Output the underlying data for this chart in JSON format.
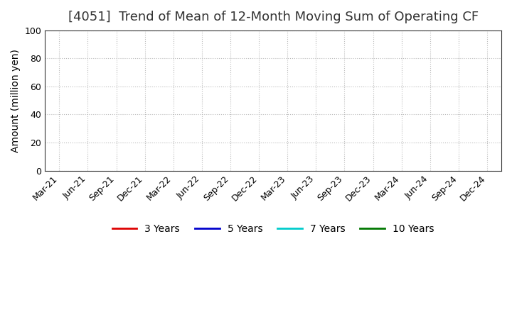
{
  "title": "[4051]  Trend of Mean of 12-Month Moving Sum of Operating CF",
  "ylabel": "Amount (million yen)",
  "ylim": [
    0,
    100
  ],
  "yticks": [
    0,
    20,
    40,
    60,
    80,
    100
  ],
  "background_color": "#ffffff",
  "plot_bg_color": "#ffffff",
  "grid_color": "#bbbbbb",
  "title_fontsize": 13,
  "title_color": "#333333",
  "axis_label_fontsize": 10,
  "tick_fontsize": 9,
  "legend_entries": [
    {
      "label": "3 Years",
      "color": "#dd0000",
      "lw": 2
    },
    {
      "label": "5 Years",
      "color": "#0000cc",
      "lw": 2
    },
    {
      "label": "7 Years",
      "color": "#00cccc",
      "lw": 2
    },
    {
      "label": "10 Years",
      "color": "#007700",
      "lw": 2
    }
  ],
  "x_tick_labels": [
    "Mar-21",
    "Jun-21",
    "Sep-21",
    "Dec-21",
    "Mar-22",
    "Jun-22",
    "Sep-22",
    "Dec-22",
    "Mar-23",
    "Jun-23",
    "Sep-23",
    "Dec-23",
    "Mar-24",
    "Jun-24",
    "Sep-24",
    "Dec-24"
  ],
  "series_data": {
    "3 Years": [
      null,
      null,
      null,
      null,
      null,
      null,
      null,
      null,
      null,
      null,
      null,
      null,
      null,
      null,
      null,
      null
    ],
    "5 Years": [
      null,
      null,
      null,
      null,
      null,
      null,
      null,
      null,
      null,
      null,
      null,
      null,
      null,
      null,
      null,
      null
    ],
    "7 Years": [
      null,
      null,
      null,
      null,
      null,
      null,
      null,
      null,
      null,
      null,
      null,
      null,
      null,
      null,
      null,
      null
    ],
    "10 Years": [
      null,
      null,
      null,
      null,
      null,
      null,
      null,
      null,
      null,
      null,
      null,
      null,
      null,
      null,
      null,
      null
    ]
  }
}
